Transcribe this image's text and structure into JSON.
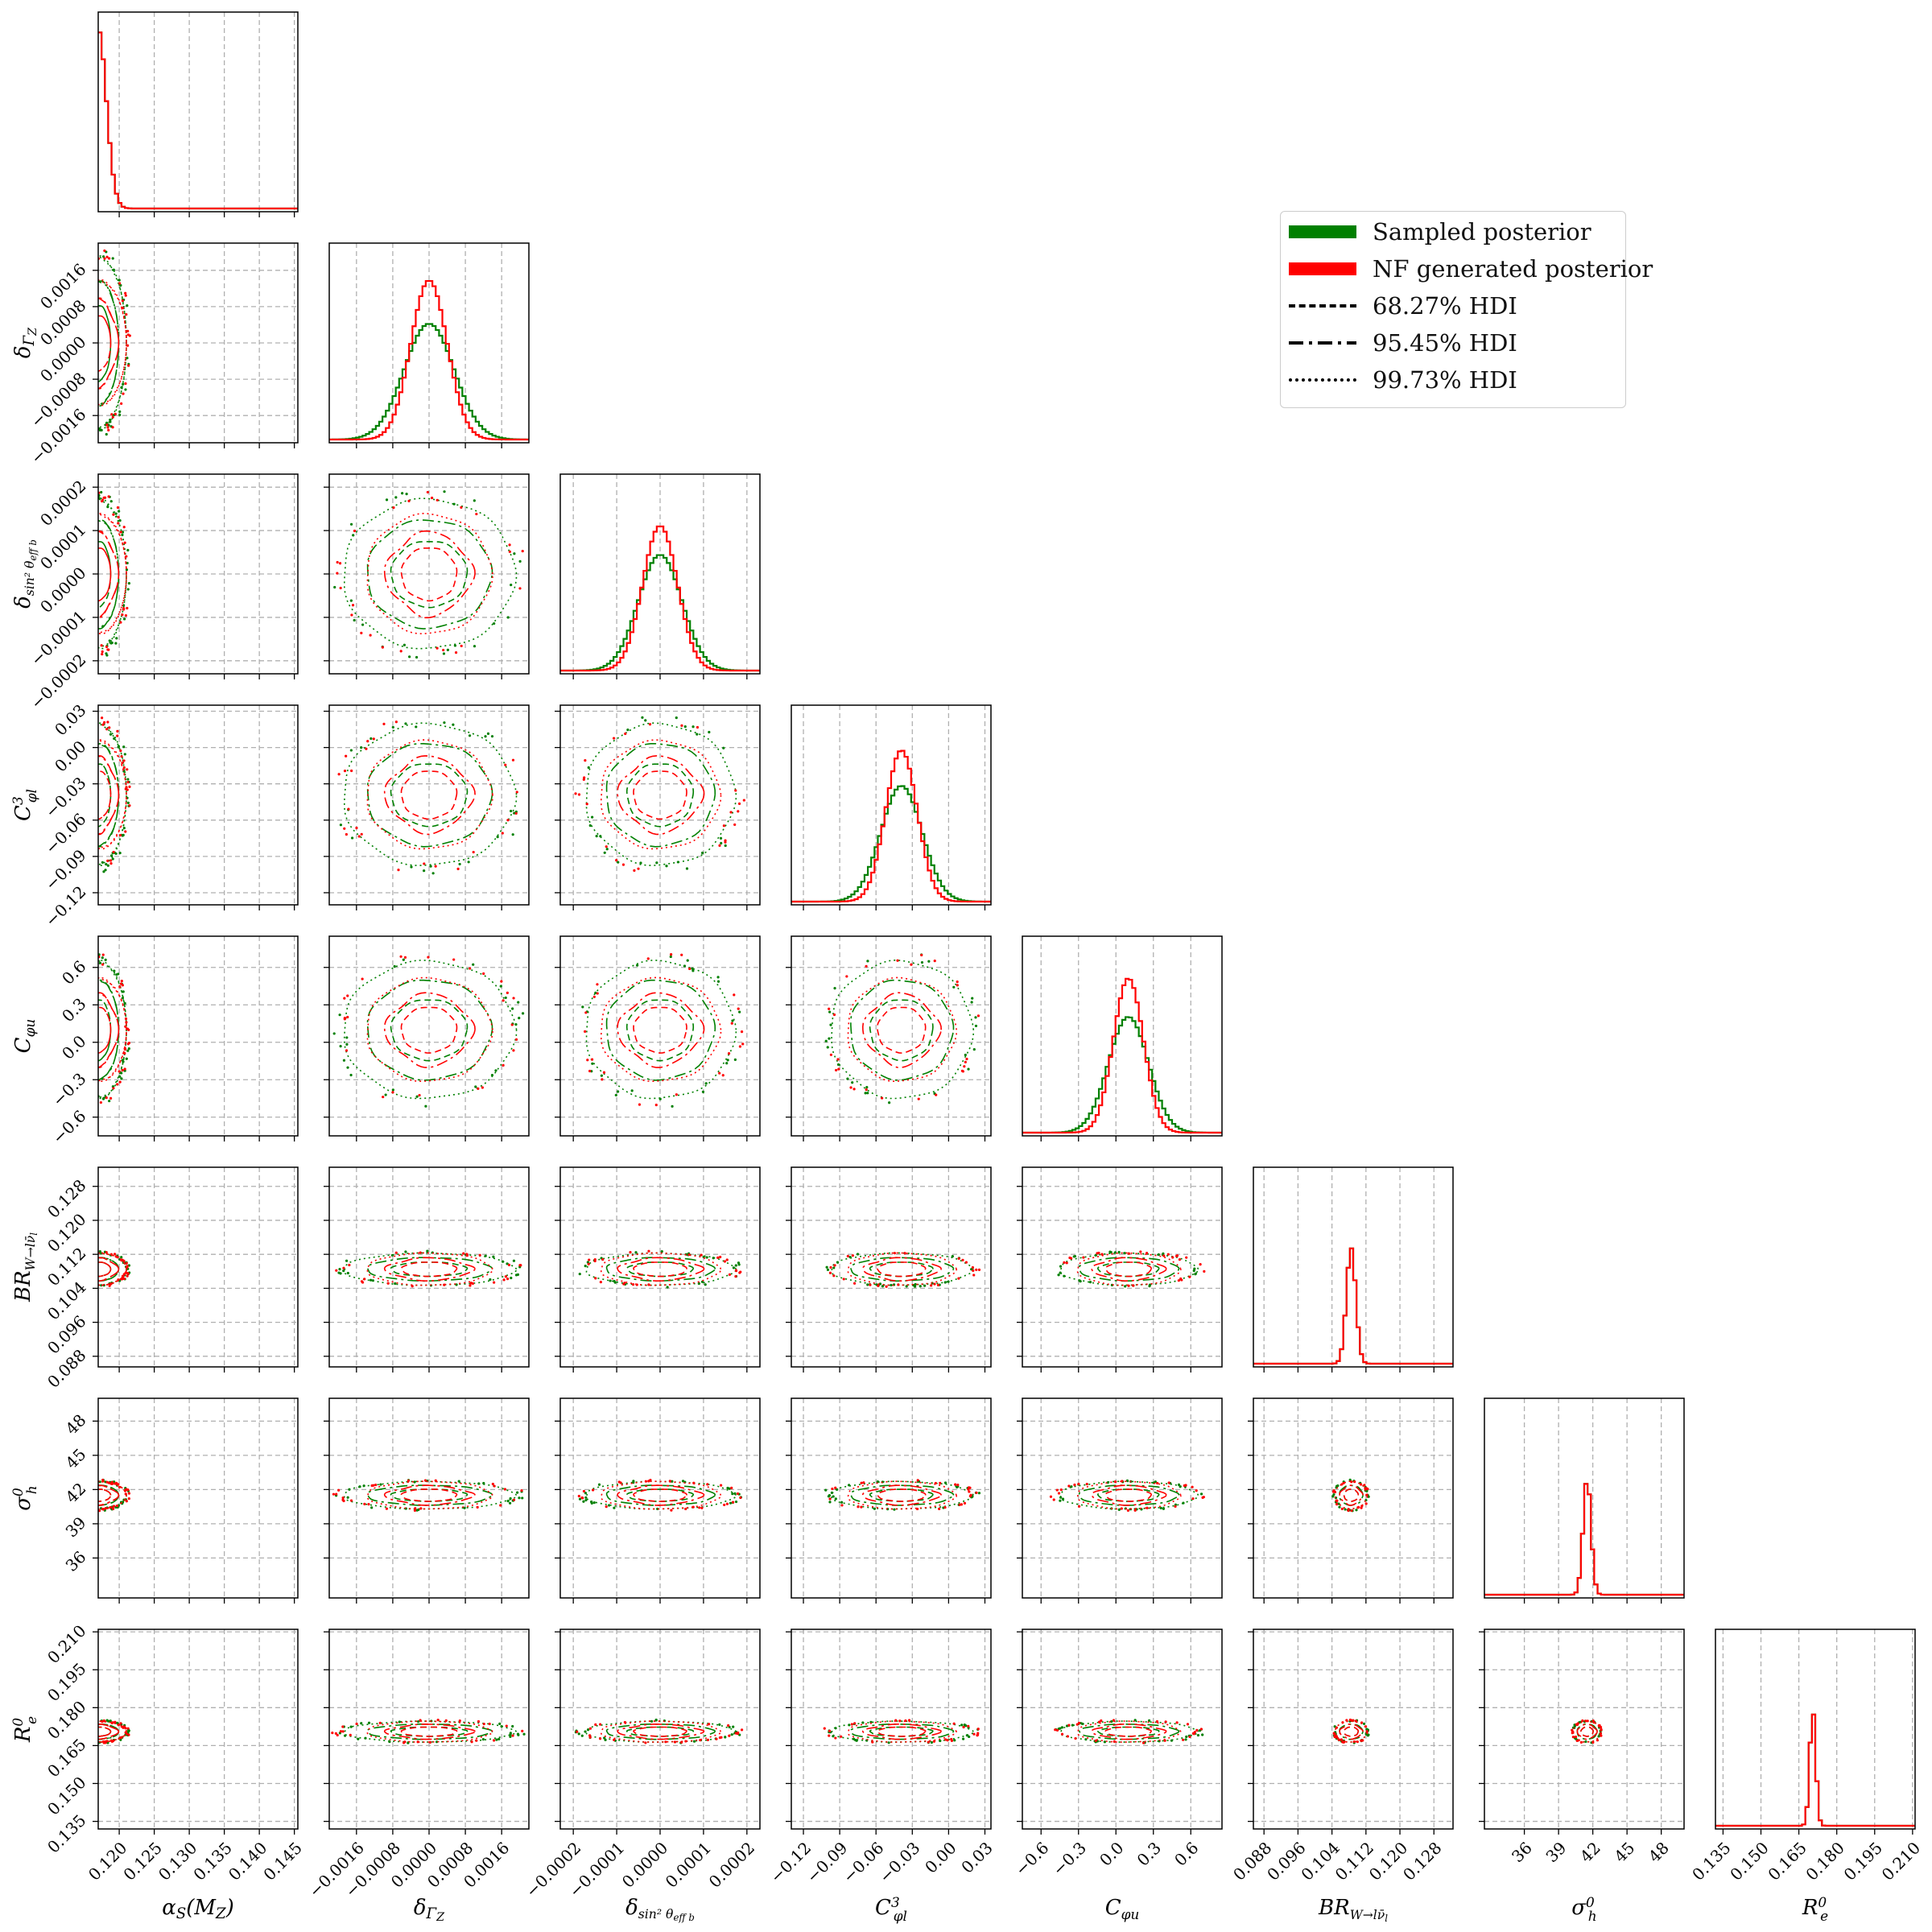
{
  "chart_data": {
    "type": "corner",
    "legend": {
      "placement": "upper-right",
      "entries": [
        {
          "label": "Sampled posterior",
          "color": "#008000",
          "style": "patch"
        },
        {
          "label": "NF generated posterior",
          "color": "#ff0000",
          "style": "patch"
        },
        {
          "label": "68.27% HDI",
          "color": "#000000",
          "style": "dashed"
        },
        {
          "label": "95.45% HDI",
          "color": "#000000",
          "style": "dashdot"
        },
        {
          "label": "99.73% HDI",
          "color": "#000000",
          "style": "dotted"
        }
      ]
    },
    "grid": true,
    "parameters": [
      {
        "label": "αS(MZ)",
        "label_html": "α<tspan font-size='70%' dy='5'>S</tspan><tspan dy='-5'>(M</tspan><tspan font-size='70%' dy='5'>Z</tspan><tspan dy='-5'>)</tspan>",
        "range": [
          0.117,
          0.1455
        ],
        "ticks": [
          0.12,
          0.125,
          0.13,
          0.135,
          0.14,
          0.145
        ],
        "tick_labels": [
          "0.120",
          "0.125",
          "0.130",
          "0.135",
          "0.140",
          "0.145"
        ],
        "mean": 0.1182,
        "sd": 0.0009,
        "nf_sd": 0.0009
      },
      {
        "label": "δΓZ",
        "label_html": "δ<tspan font-size='70%' dy='5'>Γ</tspan><tspan font-size='55%' dy='3'>Z</tspan>",
        "range": [
          -0.0022,
          0.0022
        ],
        "ticks": [
          -0.0016,
          -0.0008,
          0.0,
          0.0008,
          0.0016
        ],
        "tick_labels": [
          "−0.0016",
          "−0.0008",
          "0.0000",
          "0.0008",
          "0.0016"
        ],
        "mean": 0.0,
        "sd": 0.00055,
        "nf_sd": 0.0004
      },
      {
        "label": "δsin²θeffb",
        "label_html": "δ<tspan font-size='60%' dy='5'>sin² θ</tspan><tspan font-size='45%' dy='3'>eff b</tspan>",
        "range": [
          -0.00023,
          0.00023
        ],
        "ticks": [
          -0.0002,
          -0.0001,
          0.0,
          0.0001,
          0.0002
        ],
        "tick_labels": [
          "−0.0002",
          "−0.0001",
          "0.0000",
          "0.0001",
          "0.0002"
        ],
        "mean": 0.0,
        "sd": 5e-05,
        "nf_sd": 4e-05
      },
      {
        "label": "C3φl",
        "label_html": "C<tspan font-size='65%' dy='-9'>3</tspan><tspan font-size='65%' dx='-8' dy='17'>φl</tspan>",
        "range": [
          -0.13,
          0.035
        ],
        "ticks": [
          -0.12,
          -0.09,
          -0.06,
          -0.03,
          0.0,
          0.03
        ],
        "tick_labels": [
          "−0.12",
          "−0.09",
          "−0.06",
          "−0.03",
          "0.00",
          "0.03"
        ],
        "mean": -0.039,
        "sd": 0.017,
        "nf_sd": 0.013
      },
      {
        "label": "Cφu",
        "label_html": "C<tspan font-size='65%' dy='6'>φu</tspan>",
        "range": [
          -0.75,
          0.85
        ],
        "ticks": [
          -0.6,
          -0.3,
          0.0,
          0.3,
          0.6
        ],
        "tick_labels": [
          "−0.6",
          "−0.3",
          "0.0",
          "0.3",
          "0.6"
        ],
        "mean": 0.1,
        "sd": 0.16,
        "nf_sd": 0.12
      },
      {
        "label": "BRW→lν̄l",
        "label_html": "BR<tspan font-size='60%' dy='6'>W→lν̄</tspan><tspan font-size='45%' dy='3'>l</tspan>",
        "range": [
          0.0855,
          0.1325
        ],
        "ticks": [
          0.088,
          0.096,
          0.104,
          0.112,
          0.12,
          0.128
        ],
        "tick_labels": [
          "0.088",
          "0.096",
          "0.104",
          "0.112",
          "0.120",
          "0.128"
        ],
        "mean": 0.1085,
        "sd": 0.0011,
        "nf_sd": 0.0011
      },
      {
        "label": "σ0h",
        "label_html": "σ<tspan font-size='65%' dy='-9'>0</tspan><tspan font-size='65%' dx='-8' dy='17'>h</tspan>",
        "range": [
          32.5,
          50.0
        ],
        "ticks": [
          36,
          39,
          42,
          45,
          48
        ],
        "tick_labels": [
          "36",
          "39",
          "42",
          "45",
          "48"
        ],
        "mean": 41.5,
        "sd": 0.35,
        "nf_sd": 0.35
      },
      {
        "label": "R0e",
        "label_html": "R<tspan font-size='65%' dy='-9'>0</tspan><tspan font-size='65%' dx='-8' dy='17'>e</tspan>",
        "range": [
          0.132,
          0.211
        ],
        "ticks": [
          0.135,
          0.15,
          0.165,
          0.18,
          0.195,
          0.21
        ],
        "tick_labels": [
          "0.135",
          "0.150",
          "0.165",
          "0.180",
          "0.195",
          "0.210"
        ],
        "mean": 0.1705,
        "sd": 0.0012,
        "nf_sd": 0.0012
      }
    ],
    "hdi_levels": [
      "68.27% HDI",
      "95.45% HDI",
      "99.73% HDI"
    ]
  }
}
